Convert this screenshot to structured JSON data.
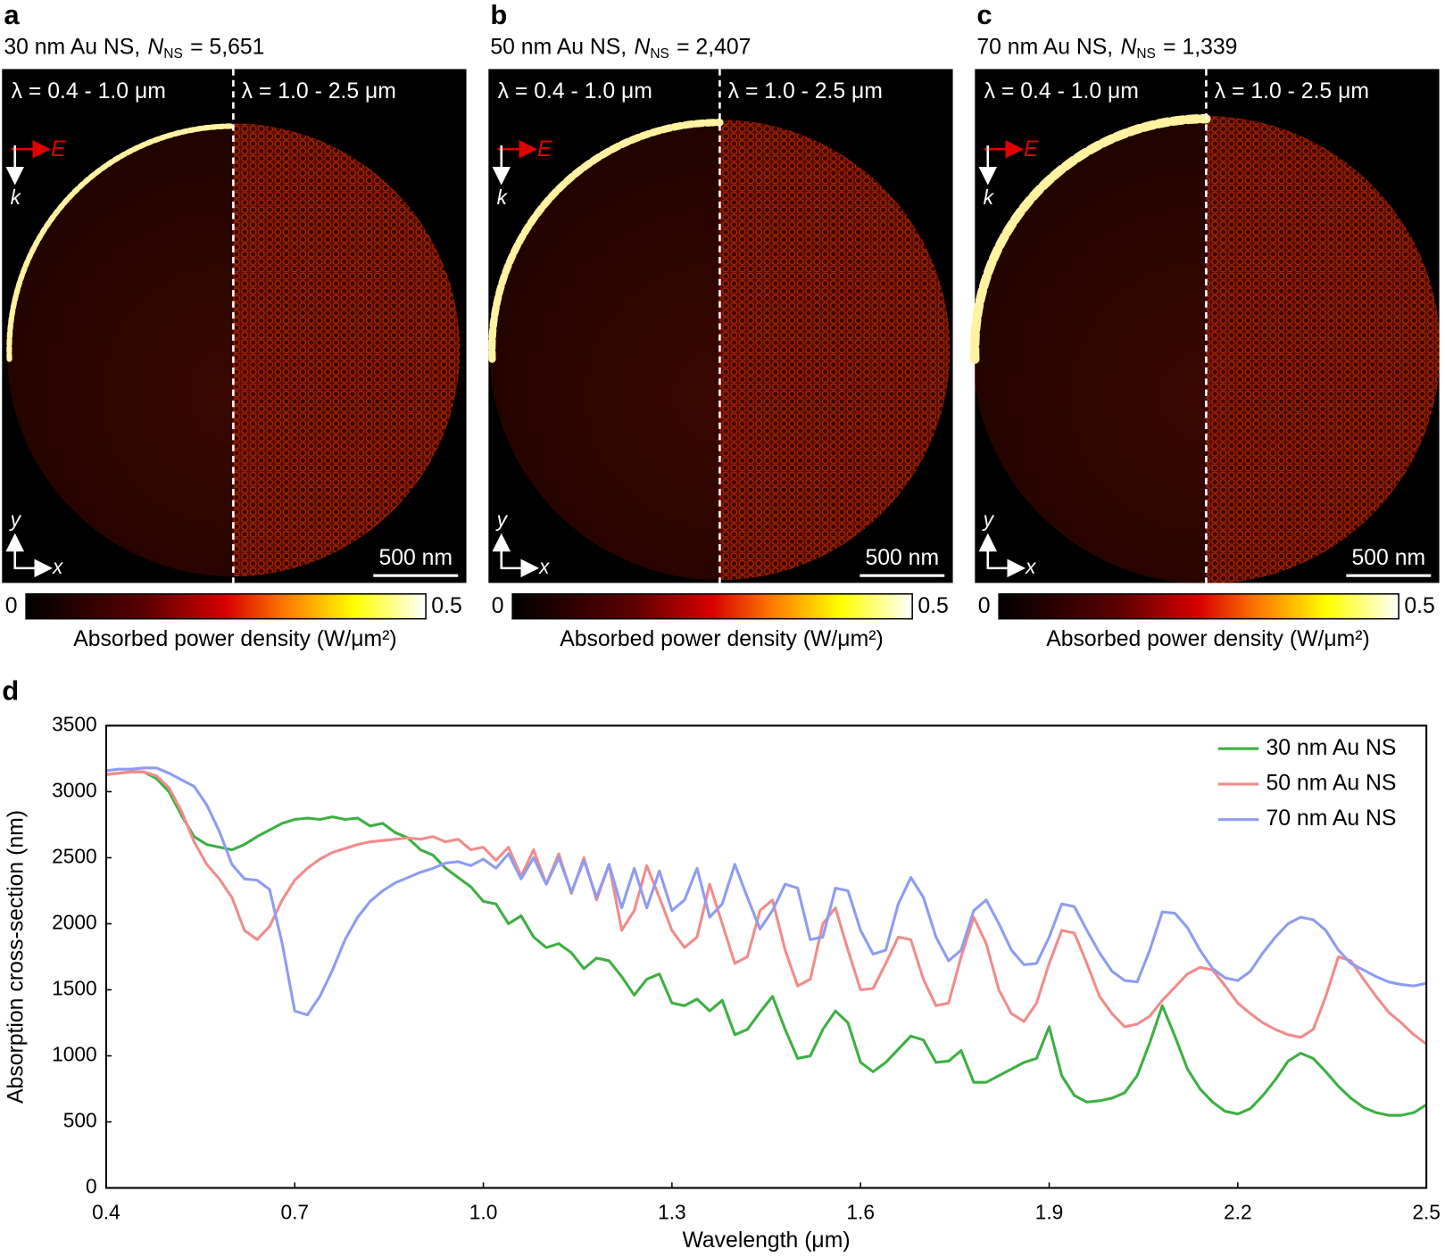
{
  "labels": {
    "e": "E",
    "k": "k",
    "x": "x",
    "y": "y"
  },
  "panels": [
    {
      "letter": "a",
      "title_prefix": "30 nm Au NS,",
      "n_symbol": "N",
      "n_sub": "NS",
      "n_value": "= 5,651",
      "left_band": "λ = 0.4 - 1.0 μm",
      "right_band": "λ = 1.0 - 2.5 μm",
      "scale_bar": "500 nm",
      "cbar_min": 0,
      "cbar_max": 0.5,
      "cbar_label": "Absorbed power density (W/μm²)"
    },
    {
      "letter": "b",
      "title_prefix": "50 nm Au NS,",
      "n_symbol": "N",
      "n_sub": "NS",
      "n_value": "= 2,407",
      "left_band": "λ = 0.4 - 1.0 μm",
      "right_band": "λ = 1.0 - 2.5 μm",
      "scale_bar": "500 nm",
      "cbar_min": 0,
      "cbar_max": 0.5,
      "cbar_label": "Absorbed power density (W/μm²)"
    },
    {
      "letter": "c",
      "title_prefix": "70 nm Au NS,",
      "n_symbol": "N",
      "n_sub": "NS",
      "n_value": "= 1,339",
      "left_band": "λ = 0.4 - 1.0 μm",
      "right_band": "λ = 1.0 - 2.5 μm",
      "scale_bar": "500 nm",
      "cbar_min": 0,
      "cbar_max": 0.5,
      "cbar_label": "Absorbed power density (W/μm²)"
    }
  ],
  "chart_data": {
    "type": "line",
    "letter": "d",
    "x_label": "Wavelength (μm)",
    "y_label": "Absorption cross-section (nm)",
    "xlim": [
      0.4,
      2.5
    ],
    "xticks": [
      0.4,
      0.7,
      {
        "value": 1,
        "label": "1.0"
      },
      1.3,
      1.6,
      1.9,
      2.2,
      2.5
    ],
    "ylim": [
      0,
      3500
    ],
    "yticks": [
      0,
      500,
      1000,
      1500,
      2000,
      2500,
      3000,
      3500
    ],
    "grid": false,
    "legend": "top-right",
    "x": [
      0.4,
      0.42,
      0.44,
      0.46,
      0.48,
      0.5,
      0.52,
      0.54,
      0.56,
      0.58,
      0.6,
      0.62,
      0.64,
      0.66,
      0.68,
      0.7,
      0.72,
      0.74,
      0.76,
      0.78,
      0.8,
      0.82,
      0.84,
      0.86,
      0.88,
      0.9,
      0.92,
      0.94,
      0.96,
      0.98,
      1.0,
      1.02,
      1.04,
      1.06,
      1.08,
      1.1,
      1.12,
      1.14,
      1.16,
      1.18,
      1.2,
      1.22,
      1.24,
      1.26,
      1.28,
      1.3,
      1.32,
      1.34,
      1.36,
      1.38,
      1.4,
      1.42,
      1.44,
      1.46,
      1.48,
      1.5,
      1.52,
      1.54,
      1.56,
      1.58,
      1.6,
      1.62,
      1.64,
      1.66,
      1.68,
      1.7,
      1.72,
      1.74,
      1.76,
      1.78,
      1.8,
      1.82,
      1.84,
      1.86,
      1.88,
      1.9,
      1.92,
      1.94,
      1.96,
      1.98,
      2.0,
      2.02,
      2.04,
      2.06,
      2.08,
      2.1,
      2.12,
      2.14,
      2.16,
      2.18,
      2.2,
      2.22,
      2.24,
      2.26,
      2.28,
      2.3,
      2.32,
      2.34,
      2.36,
      2.38,
      2.4,
      2.42,
      2.44,
      2.46,
      2.48,
      2.5
    ],
    "series": [
      {
        "name": "30 nm Au NS",
        "color": "#3db043",
        "values": [
          3130,
          3140,
          3150,
          3150,
          3100,
          3000,
          2820,
          2660,
          2600,
          2580,
          2560,
          2600,
          2660,
          2710,
          2760,
          2790,
          2800,
          2790,
          2810,
          2790,
          2800,
          2740,
          2760,
          2690,
          2650,
          2560,
          2520,
          2420,
          2350,
          2280,
          2170,
          2150,
          2000,
          2060,
          1900,
          1820,
          1850,
          1780,
          1660,
          1740,
          1720,
          1600,
          1460,
          1580,
          1620,
          1400,
          1380,
          1430,
          1340,
          1420,
          1160,
          1200,
          1330,
          1450,
          1200,
          980,
          1000,
          1200,
          1340,
          1250,
          950,
          880,
          950,
          1050,
          1150,
          1120,
          950,
          960,
          1040,
          800,
          800,
          850,
          900,
          950,
          980,
          1220,
          850,
          700,
          650,
          660,
          680,
          720,
          850,
          1100,
          1380,
          1150,
          900,
          750,
          650,
          580,
          560,
          600,
          700,
          820,
          960,
          1020,
          980,
          880,
          770,
          680,
          610,
          570,
          550,
          550,
          570,
          630
        ]
      },
      {
        "name": "50 nm Au NS",
        "color": "#f28b8b",
        "values": [
          3130,
          3140,
          3150,
          3150,
          3120,
          3030,
          2850,
          2620,
          2450,
          2340,
          2200,
          1950,
          1880,
          1980,
          2180,
          2330,
          2420,
          2490,
          2540,
          2570,
          2600,
          2620,
          2630,
          2640,
          2650,
          2640,
          2660,
          2620,
          2640,
          2560,
          2580,
          2480,
          2580,
          2360,
          2560,
          2300,
          2530,
          2230,
          2500,
          2180,
          2450,
          1950,
          2100,
          2440,
          2200,
          1950,
          1820,
          1900,
          2300,
          2000,
          1700,
          1750,
          2100,
          2180,
          1800,
          1530,
          1580,
          2000,
          2120,
          1800,
          1500,
          1510,
          1700,
          1900,
          1880,
          1580,
          1380,
          1400,
          1750,
          2050,
          1850,
          1500,
          1320,
          1260,
          1400,
          1700,
          1950,
          1930,
          1700,
          1450,
          1320,
          1220,
          1240,
          1300,
          1420,
          1520,
          1620,
          1670,
          1650,
          1530,
          1400,
          1320,
          1250,
          1200,
          1160,
          1140,
          1200,
          1450,
          1750,
          1720,
          1580,
          1450,
          1330,
          1250,
          1160,
          1090
        ]
      },
      {
        "name": "70 nm Au NS",
        "color": "#8e9cf2",
        "values": [
          3160,
          3170,
          3170,
          3180,
          3180,
          3140,
          3090,
          3040,
          2900,
          2700,
          2450,
          2340,
          2330,
          2260,
          1850,
          1340,
          1310,
          1450,
          1650,
          1880,
          2050,
          2170,
          2250,
          2310,
          2350,
          2390,
          2420,
          2460,
          2470,
          2440,
          2490,
          2420,
          2530,
          2340,
          2500,
          2300,
          2500,
          2240,
          2480,
          2200,
          2450,
          2120,
          2420,
          2120,
          2400,
          2100,
          2180,
          2420,
          2050,
          2150,
          2450,
          2200,
          1960,
          2100,
          2300,
          2270,
          1880,
          1900,
          2270,
          2250,
          1950,
          1770,
          1800,
          2150,
          2350,
          2200,
          1900,
          1720,
          1800,
          2100,
          2180,
          2000,
          1800,
          1690,
          1700,
          1900,
          2150,
          2130,
          1950,
          1780,
          1640,
          1570,
          1560,
          1800,
          2090,
          2080,
          1970,
          1800,
          1660,
          1590,
          1570,
          1640,
          1780,
          1900,
          2000,
          2050,
          2030,
          1950,
          1800,
          1700,
          1650,
          1600,
          1560,
          1540,
          1530,
          1550
        ]
      }
    ]
  }
}
